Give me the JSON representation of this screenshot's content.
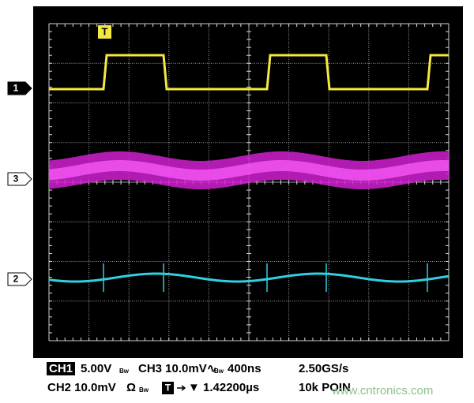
{
  "screen": {
    "trigger_marker": "T",
    "channel_markers": {
      "ch1": "1",
      "ch3": "3",
      "ch2": "2"
    }
  },
  "status": {
    "row1": {
      "ch1_label": "CH1",
      "ch1_scale": "5.00V",
      "ch1_bw": "Bw",
      "ch3": "CH3 10.0mV",
      "ch3_coupling": "∿",
      "ch3_bw": "Bw",
      "timebase": "400ns",
      "sample_rate": "2.50GS/s"
    },
    "row2": {
      "ch2": "CH2 10.0mV",
      "ch2_coupling": "Ω",
      "ch2_bw": "Bw",
      "trigger_icon": "T",
      "trigger_position": "▼ 1.42200µs",
      "record_length": "10k POIN"
    }
  },
  "watermark": "www.cntronics.com"
}
